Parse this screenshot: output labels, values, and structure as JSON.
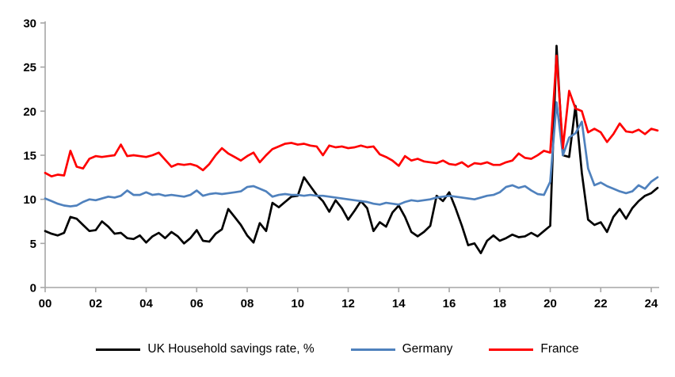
{
  "chart_data": {
    "type": "line",
    "title": "",
    "xlabel": "",
    "ylabel": "",
    "grid": false,
    "legend_position": "bottom",
    "frequency": "quarterly",
    "x_start": "2000Q1",
    "x_end": "2024Q2",
    "x_axis": {
      "tick_labels": [
        "00",
        "02",
        "04",
        "06",
        "08",
        "10",
        "12",
        "14",
        "16",
        "18",
        "20",
        "22",
        "24"
      ],
      "ticks_every_n_points": 8
    },
    "y_axis": {
      "ticks": [
        0,
        5,
        10,
        15,
        20,
        25,
        30
      ],
      "range": [
        0,
        30
      ]
    },
    "series": [
      {
        "name": "UK Household savings rate, %",
        "color": "#000000",
        "values": [
          6.4,
          6.1,
          5.9,
          6.2,
          8.0,
          7.8,
          7.1,
          6.4,
          6.5,
          7.5,
          6.9,
          6.1,
          6.2,
          5.6,
          5.5,
          5.9,
          5.1,
          5.8,
          6.2,
          5.6,
          6.3,
          5.8,
          5.0,
          5.6,
          6.5,
          5.3,
          5.2,
          6.1,
          6.6,
          8.9,
          8.0,
          7.1,
          5.9,
          5.1,
          7.3,
          6.4,
          9.6,
          9.1,
          9.7,
          10.3,
          10.4,
          12.5,
          11.5,
          10.5,
          9.8,
          8.6,
          9.9,
          9.0,
          7.7,
          8.7,
          9.8,
          9.0,
          6.4,
          7.4,
          6.9,
          8.5,
          9.3,
          8.0,
          6.3,
          5.8,
          6.3,
          7.0,
          10.4,
          9.8,
          10.8,
          9.0,
          7.0,
          4.8,
          5.0,
          3.9,
          5.3,
          5.9,
          5.3,
          5.6,
          6.0,
          5.7,
          5.8,
          6.2,
          5.8,
          6.4,
          7.0,
          27.4,
          15.0,
          14.8,
          20.6,
          13.0,
          7.7,
          7.1,
          7.4,
          6.3,
          8.0,
          8.9,
          7.8,
          9.0,
          9.8,
          10.4,
          10.7,
          11.3
        ]
      },
      {
        "name": "Germany",
        "color": "#4F81BD",
        "values": [
          10.1,
          9.8,
          9.5,
          9.3,
          9.2,
          9.3,
          9.7,
          10.0,
          9.9,
          10.1,
          10.3,
          10.2,
          10.4,
          11.0,
          10.5,
          10.5,
          10.8,
          10.5,
          10.6,
          10.4,
          10.5,
          10.4,
          10.3,
          10.5,
          11.0,
          10.4,
          10.6,
          10.7,
          10.6,
          10.7,
          10.8,
          10.9,
          11.4,
          11.5,
          11.2,
          10.9,
          10.3,
          10.5,
          10.6,
          10.5,
          10.5,
          10.4,
          10.5,
          10.4,
          10.4,
          10.3,
          10.2,
          10.1,
          10.0,
          9.9,
          9.8,
          9.7,
          9.5,
          9.4,
          9.6,
          9.5,
          9.4,
          9.7,
          9.9,
          9.8,
          9.9,
          10.0,
          10.2,
          10.3,
          10.4,
          10.3,
          10.2,
          10.1,
          10.0,
          10.2,
          10.4,
          10.5,
          10.8,
          11.4,
          11.6,
          11.3,
          11.5,
          11.0,
          10.6,
          10.5,
          12.0,
          21.0,
          15.0,
          17.0,
          17.5,
          18.8,
          13.5,
          11.6,
          11.9,
          11.5,
          11.2,
          10.9,
          10.7,
          10.9,
          11.6,
          11.2,
          12.0,
          12.5
        ]
      },
      {
        "name": "France",
        "color": "#FF0000",
        "values": [
          13.0,
          12.6,
          12.8,
          12.7,
          15.5,
          13.7,
          13.5,
          14.6,
          14.9,
          14.8,
          14.9,
          15.0,
          16.2,
          14.9,
          15.0,
          14.9,
          14.8,
          15.0,
          15.3,
          14.5,
          13.7,
          14.0,
          13.9,
          14.0,
          13.8,
          13.3,
          14.0,
          15.0,
          15.8,
          15.2,
          14.8,
          14.4,
          14.9,
          15.3,
          14.2,
          15.0,
          15.7,
          16.0,
          16.3,
          16.4,
          16.2,
          16.3,
          16.1,
          16.0,
          15.0,
          16.1,
          15.9,
          16.0,
          15.8,
          15.9,
          16.1,
          15.9,
          16.0,
          15.1,
          14.8,
          14.4,
          13.8,
          14.9,
          14.4,
          14.6,
          14.3,
          14.2,
          14.1,
          14.4,
          14.0,
          13.9,
          14.2,
          13.7,
          14.1,
          14.0,
          14.2,
          13.9,
          13.9,
          14.2,
          14.4,
          15.2,
          14.7,
          14.6,
          15.0,
          15.5,
          15.3,
          26.3,
          15.8,
          22.3,
          20.3,
          20.0,
          17.6,
          18.0,
          17.6,
          16.5,
          17.4,
          18.6,
          17.7,
          17.6,
          17.9,
          17.4,
          18.0,
          17.8
        ]
      }
    ]
  },
  "legend": {
    "items": [
      "UK Household savings rate, %",
      "Germany",
      "France"
    ]
  },
  "colors": {
    "axis": "#A6A6A6",
    "label_text": "#000000",
    "background": "#FFFFFF"
  }
}
